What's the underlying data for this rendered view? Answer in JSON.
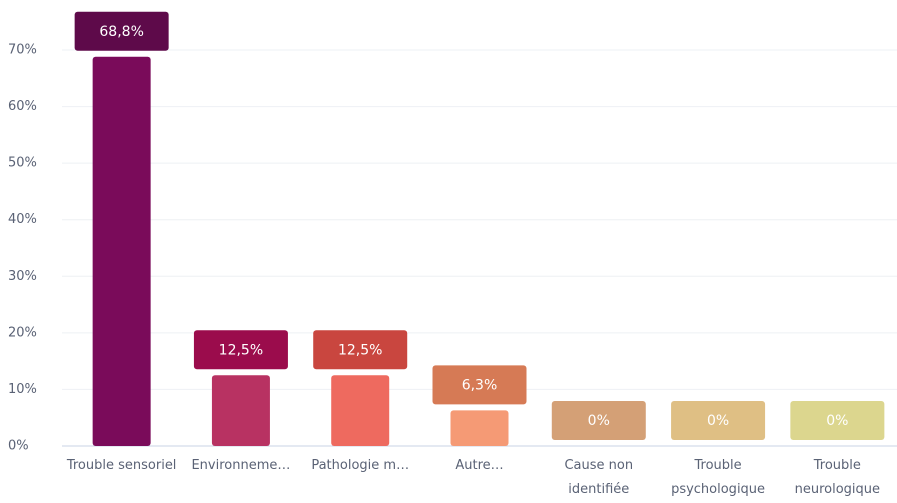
{
  "chart_data": {
    "type": "bar",
    "categories": [
      "Trouble sensoriel",
      "Environneme…",
      "Pathologie m…",
      "Autre…",
      "Cause non identifiée",
      "Trouble psychologique",
      "Trouble neurologique"
    ],
    "values": [
      68.8,
      12.5,
      12.5,
      6.3,
      0,
      0,
      0
    ],
    "value_labels": [
      "68,8%",
      "12,5%",
      "12,5%",
      "6,3%",
      "0%",
      "0%",
      "0%"
    ],
    "colors": [
      "#7a0b5a",
      "#b83262",
      "#ee6a5f",
      "#f59a75",
      "#d4a076",
      "#dfbf84",
      "#dcd68e"
    ],
    "label_colors": [
      "#5e0a4a",
      "#9b0c4c",
      "#c9463f",
      "#d67a55",
      "#d4a076",
      "#dfbf84",
      "#dcd68e"
    ],
    "ylim": [
      0,
      70
    ],
    "yticks": [
      {
        "value": 0,
        "label": "0%"
      },
      {
        "value": 10,
        "label": "10%"
      },
      {
        "value": 20,
        "label": "20%"
      },
      {
        "value": 30,
        "label": "30%"
      },
      {
        "value": 40,
        "label": "40%"
      },
      {
        "value": 50,
        "label": "50%"
      },
      {
        "value": 60,
        "label": "60%"
      },
      {
        "value": 70,
        "label": "70%"
      }
    ],
    "grid": true
  }
}
